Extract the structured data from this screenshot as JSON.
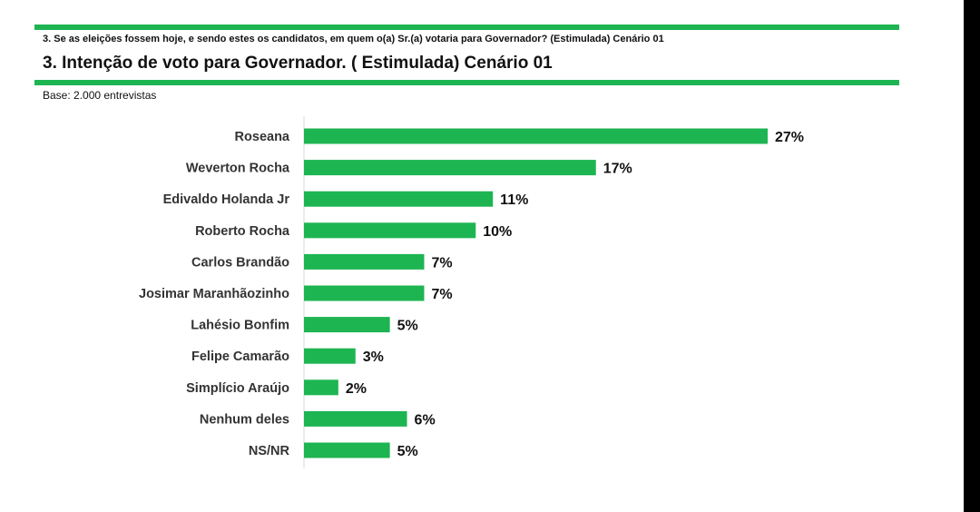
{
  "header": {
    "question": "3. Se as eleições fossem hoje, e sendo estes os candidatos, em quem o(a) Sr.(a) votaria para Governador? (Estimulada) Cenário 01",
    "title": "3. Intenção de voto para Governador. ( Estimulada) Cenário 01",
    "base": "Base: 2.000 entrevistas"
  },
  "colors": {
    "accent": "#1db552",
    "bar": "#1db552",
    "text": "#111111"
  },
  "chart_data": {
    "type": "bar",
    "orientation": "horizontal",
    "categories": [
      "Roseana",
      "Weverton Rocha",
      "Edivaldo Holanda Jr",
      "Roberto Rocha",
      "Carlos Brandão",
      "Josimar Maranhãozinho",
      "Lahésio Bonfim",
      "Felipe Camarão",
      "Simplício Araújo",
      "Nenhum deles",
      "NS/NR"
    ],
    "values": [
      27,
      17,
      11,
      10,
      7,
      7,
      5,
      3,
      2,
      6,
      5
    ],
    "labels": [
      "27%",
      "17%",
      "11%",
      "10%",
      "7%",
      "7%",
      "5%",
      "3%",
      "2%",
      "6%",
      "5%"
    ],
    "title": "",
    "xlabel": "",
    "ylabel": "",
    "xlim": [
      0,
      27
    ],
    "grid": false,
    "legend": "none"
  }
}
